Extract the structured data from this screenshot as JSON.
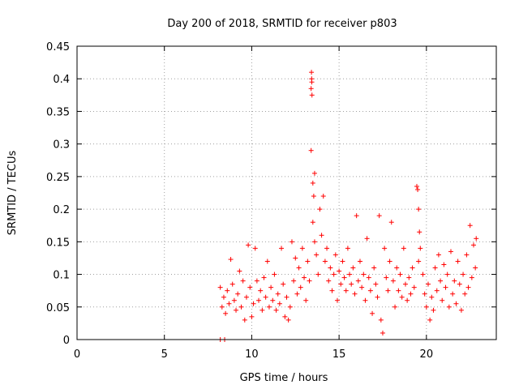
{
  "chart_data": {
    "type": "scatter",
    "title": "Day 200 of 2018, SRMTID for receiver p803",
    "xlabel": "GPS time / hours",
    "ylabel": "SRMTID / TECUs",
    "xlim": [
      0,
      24
    ],
    "ylim": [
      0,
      0.45
    ],
    "xticks": [
      0,
      5,
      10,
      15,
      20
    ],
    "xtick_labels": [
      "0",
      "5",
      "10",
      "15",
      "20"
    ],
    "yticks": [
      0,
      0.05,
      0.1,
      0.15,
      0.2,
      0.25,
      0.3,
      0.35,
      0.4,
      0.45
    ],
    "ytick_labels": [
      "0",
      "0.05",
      "0.1",
      "0.15",
      "0.2",
      "0.25",
      "0.3",
      "0.35",
      "0.4",
      "0.45"
    ],
    "grid": true,
    "marker": "+",
    "color": "#ff0000",
    "series": [
      {
        "name": "SRMTID",
        "points": [
          [
            8.2,
            0.0
          ],
          [
            8.45,
            0.0
          ],
          [
            8.2,
            0.08
          ],
          [
            8.3,
            0.05
          ],
          [
            8.4,
            0.065
          ],
          [
            8.5,
            0.04
          ],
          [
            8.6,
            0.075
          ],
          [
            8.7,
            0.055
          ],
          [
            8.8,
            0.123
          ],
          [
            8.9,
            0.085
          ],
          [
            9.0,
            0.06
          ],
          [
            9.1,
            0.045
          ],
          [
            9.2,
            0.07
          ],
          [
            9.3,
            0.105
          ],
          [
            9.4,
            0.05
          ],
          [
            9.5,
            0.09
          ],
          [
            9.6,
            0.03
          ],
          [
            9.7,
            0.065
          ],
          [
            9.8,
            0.145
          ],
          [
            9.9,
            0.08
          ],
          [
            10.0,
            0.035
          ],
          [
            10.1,
            0.055
          ],
          [
            10.2,
            0.14
          ],
          [
            10.3,
            0.09
          ],
          [
            10.4,
            0.06
          ],
          [
            10.5,
            0.075
          ],
          [
            10.6,
            0.045
          ],
          [
            10.7,
            0.095
          ],
          [
            10.8,
            0.065
          ],
          [
            10.9,
            0.12
          ],
          [
            11.0,
            0.05
          ],
          [
            11.1,
            0.08
          ],
          [
            11.2,
            0.06
          ],
          [
            11.3,
            0.1
          ],
          [
            11.4,
            0.045
          ],
          [
            11.5,
            0.07
          ],
          [
            11.6,
            0.055
          ],
          [
            11.7,
            0.14
          ],
          [
            11.8,
            0.085
          ],
          [
            11.9,
            0.035
          ],
          [
            12.0,
            0.065
          ],
          [
            12.1,
            0.03
          ],
          [
            12.2,
            0.05
          ],
          [
            12.3,
            0.15
          ],
          [
            12.4,
            0.09
          ],
          [
            12.5,
            0.125
          ],
          [
            12.6,
            0.07
          ],
          [
            12.7,
            0.11
          ],
          [
            12.8,
            0.08
          ],
          [
            12.9,
            0.14
          ],
          [
            13.0,
            0.095
          ],
          [
            13.1,
            0.06
          ],
          [
            13.2,
            0.12
          ],
          [
            13.3,
            0.09
          ],
          [
            13.42,
            0.41
          ],
          [
            13.44,
            0.395
          ],
          [
            13.4,
            0.385
          ],
          [
            13.45,
            0.375
          ],
          [
            13.43,
            0.4
          ],
          [
            13.4,
            0.29
          ],
          [
            13.5,
            0.24
          ],
          [
            13.55,
            0.22
          ],
          [
            13.6,
            0.255
          ],
          [
            13.5,
            0.18
          ],
          [
            13.6,
            0.15
          ],
          [
            13.7,
            0.13
          ],
          [
            13.8,
            0.1
          ],
          [
            13.9,
            0.2
          ],
          [
            14.0,
            0.16
          ],
          [
            14.1,
            0.22
          ],
          [
            14.2,
            0.12
          ],
          [
            14.3,
            0.14
          ],
          [
            14.4,
            0.09
          ],
          [
            14.5,
            0.11
          ],
          [
            14.6,
            0.075
          ],
          [
            14.7,
            0.1
          ],
          [
            14.8,
            0.13
          ],
          [
            14.9,
            0.06
          ],
          [
            15.0,
            0.105
          ],
          [
            15.1,
            0.085
          ],
          [
            15.2,
            0.12
          ],
          [
            15.3,
            0.095
          ],
          [
            15.4,
            0.075
          ],
          [
            15.5,
            0.14
          ],
          [
            15.6,
            0.1
          ],
          [
            15.7,
            0.085
          ],
          [
            15.8,
            0.11
          ],
          [
            15.9,
            0.07
          ],
          [
            16.0,
            0.19
          ],
          [
            16.1,
            0.09
          ],
          [
            16.2,
            0.12
          ],
          [
            16.3,
            0.08
          ],
          [
            16.4,
            0.1
          ],
          [
            16.5,
            0.06
          ],
          [
            16.6,
            0.155
          ],
          [
            16.7,
            0.095
          ],
          [
            16.8,
            0.075
          ],
          [
            16.9,
            0.04
          ],
          [
            17.0,
            0.11
          ],
          [
            17.1,
            0.085
          ],
          [
            17.2,
            0.065
          ],
          [
            17.3,
            0.19
          ],
          [
            17.4,
            0.03
          ],
          [
            17.5,
            0.01
          ],
          [
            17.6,
            0.14
          ],
          [
            17.7,
            0.095
          ],
          [
            17.8,
            0.075
          ],
          [
            17.9,
            0.12
          ],
          [
            18.0,
            0.18
          ],
          [
            18.1,
            0.09
          ],
          [
            18.2,
            0.05
          ],
          [
            18.3,
            0.11
          ],
          [
            18.4,
            0.075
          ],
          [
            18.5,
            0.1
          ],
          [
            18.6,
            0.065
          ],
          [
            18.7,
            0.14
          ],
          [
            18.8,
            0.085
          ],
          [
            18.9,
            0.06
          ],
          [
            19.0,
            0.095
          ],
          [
            19.1,
            0.07
          ],
          [
            19.2,
            0.11
          ],
          [
            19.3,
            0.08
          ],
          [
            19.45,
            0.235
          ],
          [
            19.5,
            0.23
          ],
          [
            19.55,
            0.2
          ],
          [
            19.6,
            0.165
          ],
          [
            19.65,
            0.14
          ],
          [
            19.55,
            0.12
          ],
          [
            19.8,
            0.1
          ],
          [
            19.9,
            0.07
          ],
          [
            20.0,
            0.05
          ],
          [
            20.1,
            0.085
          ],
          [
            20.2,
            0.03
          ],
          [
            20.3,
            0.065
          ],
          [
            20.4,
            0.045
          ],
          [
            20.5,
            0.11
          ],
          [
            20.6,
            0.075
          ],
          [
            20.7,
            0.13
          ],
          [
            20.8,
            0.09
          ],
          [
            20.9,
            0.06
          ],
          [
            21.0,
            0.115
          ],
          [
            21.1,
            0.08
          ],
          [
            21.2,
            0.1
          ],
          [
            21.3,
            0.05
          ],
          [
            21.4,
            0.135
          ],
          [
            21.5,
            0.07
          ],
          [
            21.6,
            0.09
          ],
          [
            21.7,
            0.055
          ],
          [
            21.8,
            0.12
          ],
          [
            21.9,
            0.085
          ],
          [
            22.0,
            0.045
          ],
          [
            22.1,
            0.1
          ],
          [
            22.2,
            0.07
          ],
          [
            22.3,
            0.13
          ],
          [
            22.4,
            0.08
          ],
          [
            22.5,
            0.175
          ],
          [
            22.6,
            0.095
          ],
          [
            22.7,
            0.145
          ],
          [
            22.8,
            0.11
          ],
          [
            22.85,
            0.155
          ]
        ]
      }
    ]
  }
}
